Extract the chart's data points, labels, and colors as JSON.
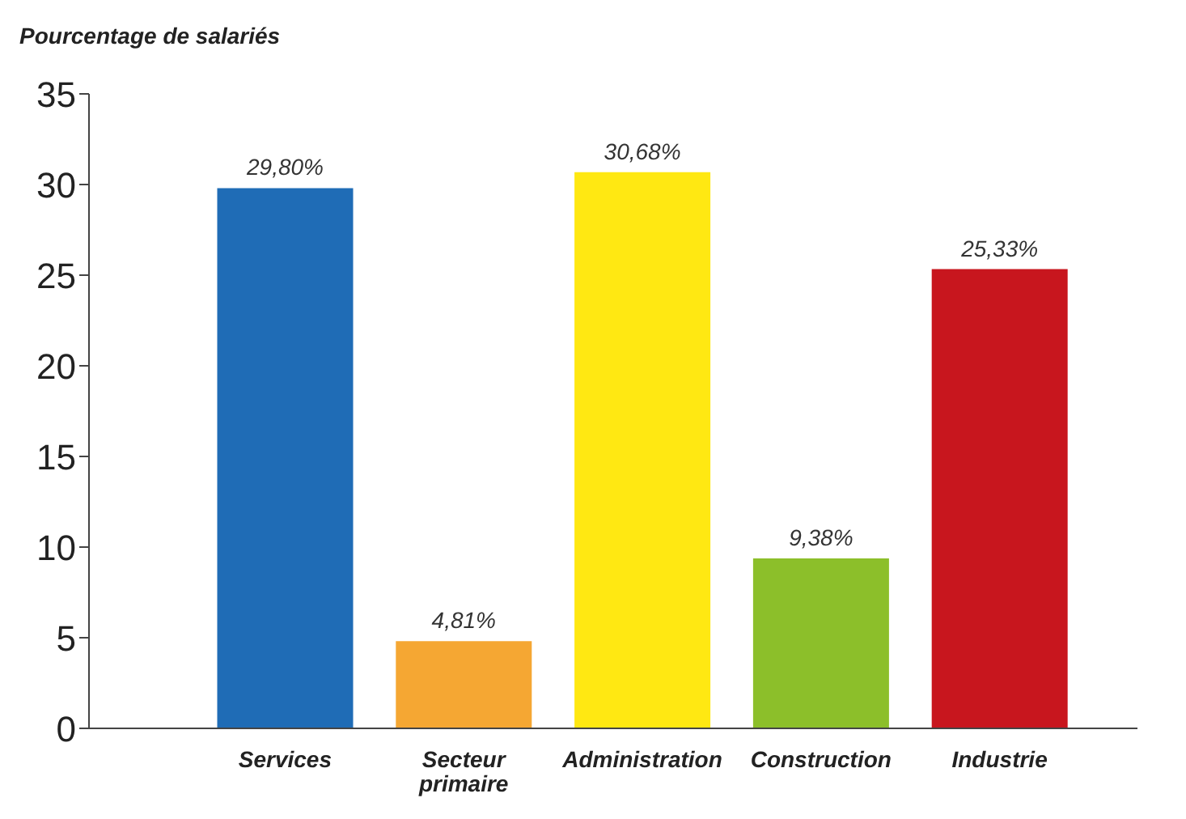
{
  "chart_data": {
    "type": "bar",
    "ylabel": "Pourcentage de salariés",
    "categories": [
      "Services",
      "Secteur primaire",
      "Administration",
      "Construction",
      "Industrie"
    ],
    "values": [
      29.8,
      4.81,
      30.68,
      9.38,
      25.33
    ],
    "colors": [
      "#1f6cb6",
      "#f5a733",
      "#ffe812",
      "#8cbf2a",
      "#c8161e"
    ],
    "value_labels": [
      "29,80%",
      "4,81%",
      "30,68%",
      "9,38%",
      "25,33%"
    ],
    "ylim": [
      0,
      35
    ],
    "yticks": [
      0,
      5,
      10,
      15,
      20,
      25,
      30,
      35
    ],
    "grid": false
  }
}
